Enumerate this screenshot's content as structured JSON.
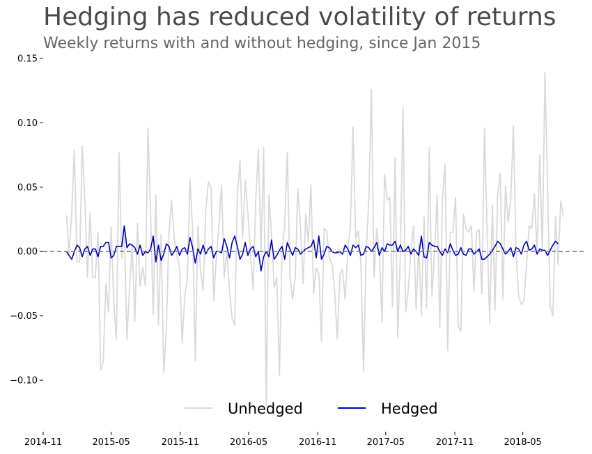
{
  "chart_data": {
    "type": "line",
    "title": "Hedging has reduced volatility of returns",
    "subtitle": "Weekly returns with and without hedging, since Jan 2015",
    "xlabel": "",
    "ylabel": "",
    "ylim": [
      -0.14,
      0.15
    ],
    "xlim": [
      "2014-11-01",
      "2018-10-10"
    ],
    "y_ticks": [
      0.15,
      0.1,
      0.05,
      0.0,
      -0.05,
      -0.1
    ],
    "y_tick_labels": [
      "0.15",
      "0.10",
      "0.05",
      "0.00",
      "−0.05",
      "−0.10"
    ],
    "x_ticks": [
      "2014-11-01",
      "2015-05-01",
      "2015-11-01",
      "2016-05-01",
      "2016-11-01",
      "2017-05-01",
      "2017-11-01",
      "2018-05-01"
    ],
    "x_tick_labels": [
      "2014-11",
      "2015-05",
      "2015-11",
      "2016-05",
      "2016-11",
      "2017-05",
      "2017-11",
      "2018-05"
    ],
    "grid": false,
    "reference_line": {
      "y": 0.0,
      "style": "dashed",
      "color": "#808080"
    },
    "legend": {
      "placement": "bottom-center"
    },
    "start_date": "2015-01-02",
    "series": [
      {
        "name": "Unhedged",
        "color": "#d9d9d9",
        "frequency": "weekly",
        "values": [
          0.028,
          -0.002,
          0.03,
          0.079,
          -0.008,
          -0.008,
          0.082,
          0.04,
          -0.02,
          0.03,
          -0.02,
          -0.02,
          0.015,
          -0.092,
          -0.085,
          -0.025,
          -0.047,
          0.019,
          -0.04,
          -0.068,
          0.077,
          -0.005,
          0.016,
          -0.068,
          -0.028,
          0.005,
          -0.054,
          0.022,
          -0.027,
          -0.012,
          -0.027,
          0.096,
          0.03,
          -0.049,
          0.044,
          -0.057,
          0.013,
          -0.094,
          -0.06,
          0.015,
          0.04,
          0.01,
          -0.003,
          -0.012,
          -0.071,
          -0.035,
          -0.02,
          0.056,
          0.015,
          -0.085,
          0.02,
          -0.015,
          -0.03,
          0.033,
          0.054,
          0.05,
          -0.038,
          -0.005,
          0.02,
          0.052,
          -0.02,
          0.0,
          -0.03,
          -0.052,
          -0.057,
          0.044,
          0.071,
          0.01,
          0.055,
          0.03,
          0.0,
          -0.03,
          0.04,
          0.08,
          0.0,
          0.081,
          -0.12,
          0.044,
          0.013,
          -0.028,
          -0.02,
          -0.096,
          0.0,
          0.02,
          0.077,
          -0.02,
          -0.037,
          -0.02,
          0.049,
          0.02,
          -0.025,
          0.029,
          0.007,
          0.052,
          -0.033,
          -0.013,
          -0.017,
          -0.07,
          0.018,
          0.016,
          -0.005,
          -0.01,
          -0.03,
          -0.068,
          -0.018,
          -0.014,
          -0.037,
          0.0,
          0.02,
          0.097,
          0.01,
          0.016,
          -0.01,
          -0.093,
          0.0,
          0.04,
          0.126,
          -0.02,
          0.018,
          0.0,
          -0.055,
          0.06,
          0.04,
          0.042,
          -0.043,
          0.073,
          -0.067,
          0.0,
          0.112,
          -0.047,
          -0.03,
          0.0,
          0.02,
          -0.045,
          0.007,
          -0.05,
          0.027,
          -0.044,
          0.081,
          -0.035,
          0.0,
          0.044,
          -0.059,
          0.04,
          0.068,
          -0.077,
          0.015,
          0.015,
          0.042,
          -0.058,
          -0.062,
          0.029,
          0.018,
          0.015,
          0.02,
          -0.031,
          0.015,
          0.017,
          -0.033,
          0.096,
          0.015,
          -0.056,
          0.036,
          -0.046,
          0.044,
          0.061,
          -0.037,
          0.051,
          0.023,
          0.04,
          0.098,
          0.0,
          -0.035,
          -0.041,
          -0.038,
          -0.01,
          0.02,
          0.018,
          0.045,
          0.0,
          0.075,
          0.0,
          0.139,
          0.05,
          -0.042,
          -0.05,
          0.027,
          -0.01,
          0.039,
          0.027
        ]
      },
      {
        "name": "Hedged",
        "color": "#0000bb",
        "frequency": "weekly",
        "values": [
          0.0,
          -0.003,
          -0.006,
          0.0,
          0.005,
          0.003,
          -0.004,
          0.002,
          0.004,
          -0.003,
          0.002,
          0.002,
          -0.004,
          0.004,
          0.004,
          0.007,
          0.007,
          -0.005,
          -0.003,
          0.004,
          0.004,
          0.004,
          0.02,
          0.003,
          0.006,
          0.005,
          0.003,
          -0.002,
          0.005,
          -0.003,
          0.0,
          -0.001,
          0.002,
          0.012,
          -0.008,
          0.005,
          -0.007,
          -0.002,
          0.006,
          0.004,
          -0.003,
          0.0,
          0.004,
          -0.003,
          0.002,
          0.003,
          -0.002,
          0.011,
          0.003,
          -0.009,
          0.002,
          -0.002,
          0.005,
          -0.002,
          0.002,
          0.004,
          -0.005,
          0.0,
          0.0,
          -0.001,
          0.01,
          0.004,
          -0.005,
          0.007,
          0.012,
          0.004,
          -0.006,
          -0.002,
          0.007,
          -0.003,
          0.002,
          0.004,
          -0.004,
          0.0,
          -0.015,
          -0.004,
          0.0,
          -0.004,
          0.009,
          -0.006,
          -0.003,
          0.001,
          0.004,
          -0.006,
          0.007,
          0.002,
          -0.003,
          0.003,
          0.002,
          -0.002,
          0.0,
          0.002,
          0.003,
          0.004,
          0.009,
          -0.005,
          0.012,
          -0.006,
          -0.002,
          0.004,
          0.003,
          0.0,
          -0.001,
          -0.001,
          0.0,
          -0.002,
          0.005,
          0.002,
          -0.003,
          0.005,
          0.003,
          0.005,
          -0.003,
          -0.002,
          0.004,
          0.003,
          0.0,
          0.003,
          0.007,
          -0.003,
          0.003,
          0.0,
          0.006,
          0.005,
          0.005,
          0.008,
          0.0,
          0.005,
          0.0,
          0.001,
          0.004,
          -0.002,
          0.002,
          0.0,
          -0.003,
          0.012,
          -0.004,
          -0.005,
          0.007,
          0.005,
          0.004,
          0.004,
          0.0,
          -0.003,
          0.002,
          -0.001,
          0.006,
          0.001,
          -0.003,
          -0.002,
          0.003,
          -0.002,
          -0.003,
          0.002,
          0.002,
          -0.002,
          0.0,
          0.002,
          -0.006,
          -0.006,
          -0.004,
          -0.002,
          0.001,
          0.004,
          0.008,
          0.006,
          0.002,
          -0.002,
          0.0,
          0.003,
          -0.004,
          0.003,
          0.002,
          -0.002,
          0.005,
          0.008,
          0.001,
          0.002,
          0.005,
          -0.002,
          0.002,
          0.001,
          0.001,
          -0.003,
          0.001,
          0.005,
          0.008,
          0.006
        ]
      }
    ]
  }
}
